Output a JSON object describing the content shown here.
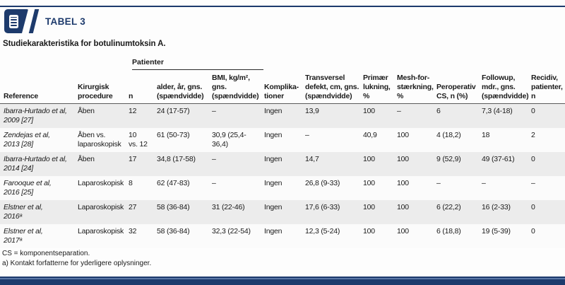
{
  "colors": {
    "accent_navy": "#1d3a6c",
    "band_gray": "#ececec",
    "bar_light_blue": "#5b77a6"
  },
  "header": {
    "badge_label": "TABEL 3",
    "icon": "document-lines-icon",
    "title": "Studiekarakteristika for botulinumtoksin A."
  },
  "table": {
    "group_header": "Patienter",
    "columns": [
      {
        "label": "Reference"
      },
      {
        "label": "Kirurgisk\nprocedure"
      },
      {
        "label": "n"
      },
      {
        "label": "alder, år, gns.\n(spændvidde)"
      },
      {
        "label": "BMI, kg/m²,\ngns.\n(spændvidde)"
      },
      {
        "label": "Komplika-\ntioner"
      },
      {
        "label": "Transversel\ndefekt, cm, gns.\n(spændvidde)"
      },
      {
        "label": "Primær\nlukning,\n%"
      },
      {
        "label": "Mesh-for-\nstærkning,\n%"
      },
      {
        "label": "Peroperativ\nCS, n (%)"
      },
      {
        "label": "Followup,\nmdr., gns.\n(spændvidde)"
      },
      {
        "label": "Recidiv,\npatienter,\nn"
      }
    ],
    "rows": [
      {
        "cells": [
          "Ibarra-Hurtado et al,\n2009 [27]",
          "Åben",
          "12",
          "24 (17-57)",
          "–",
          "Ingen",
          "13,9",
          "100",
          "–",
          "6",
          "7,3 (4-18)",
          "0"
        ]
      },
      {
        "cells": [
          "Zendejas et al,\n2013 [28]",
          "Åben vs.\nlaparoskopisk",
          "10\nvs. 12",
          "61 (50-73)",
          "30,9 (25,4-36,4)",
          "Ingen",
          "–",
          "40,9",
          "100",
          "4 (18,2)",
          "18",
          "2"
        ]
      },
      {
        "cells": [
          "Ibarra-Hurtado et al,\n2014 [24]",
          "Åben",
          "17",
          "34,8 (17-58)",
          "–",
          "Ingen",
          "14,7",
          "100",
          "100",
          "9 (52,9)",
          "49 (37-61)",
          "0"
        ]
      },
      {
        "cells": [
          "Farooque et al,\n2016 [25]",
          "Laparoskopisk",
          "8",
          "62 (47-83)",
          "–",
          "Ingen",
          "26,8 (9-33)",
          "100",
          "100",
          "–",
          "–",
          "–"
        ]
      },
      {
        "cells": [
          "Elstner et al,\n2016ᵃ",
          "Laparoskopisk",
          "27",
          "58 (36-84)",
          "31 (22-46)",
          "Ingen",
          "17,6 (6-33)",
          "100",
          "100",
          "6 (22,2)",
          "16 (2-33)",
          "0"
        ]
      },
      {
        "cells": [
          "Elstner et al,\n2017ᵃ",
          "Laparoskopisk",
          "32",
          "58 (36-84)",
          "32,3 (22-54)",
          "Ingen",
          "12,3 (5-24)",
          "100",
          "100",
          "6 (18,8)",
          "19 (5-39)",
          "0"
        ]
      }
    ]
  },
  "footnotes": [
    "CS = komponentseparation.",
    "a) Kontakt forfatterne for yderligere oplysninger."
  ]
}
